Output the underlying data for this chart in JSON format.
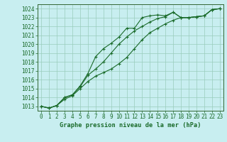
{
  "title": "Graphe pression niveau de la mer (hPa)",
  "bg_color": "#c8eef0",
  "grid_color": "#99ccbb",
  "line_color": "#1a6b2a",
  "spine_color": "#336633",
  "xlim": [
    -0.5,
    23.5
  ],
  "ylim": [
    1012.5,
    1024.5
  ],
  "xticks": [
    0,
    1,
    2,
    3,
    4,
    5,
    6,
    7,
    8,
    9,
    10,
    11,
    12,
    13,
    14,
    15,
    16,
    17,
    18,
    19,
    20,
    21,
    22,
    23
  ],
  "yticks": [
    1013,
    1014,
    1015,
    1016,
    1017,
    1018,
    1019,
    1020,
    1021,
    1022,
    1023,
    1024
  ],
  "line1_x": [
    0,
    1,
    2,
    3,
    4,
    5,
    6,
    7,
    8,
    9,
    10,
    11,
    12,
    13,
    14,
    15,
    16,
    17,
    18,
    19,
    20,
    21,
    22,
    23
  ],
  "line1_y": [
    1013.0,
    1012.8,
    1013.1,
    1014.0,
    1014.3,
    1015.3,
    1016.7,
    1018.6,
    1019.5,
    1020.1,
    1020.8,
    1021.8,
    1021.8,
    1023.0,
    1023.2,
    1023.3,
    1023.2,
    1023.6,
    1023.0,
    1023.0,
    1023.1,
    1023.2,
    1023.9,
    1024.0
  ],
  "line2_x": [
    0,
    1,
    2,
    3,
    4,
    5,
    6,
    7,
    8,
    9,
    10,
    11,
    12,
    13,
    14,
    15,
    16,
    17,
    18,
    19,
    20,
    21,
    22,
    23
  ],
  "line2_y": [
    1013.0,
    1012.8,
    1013.1,
    1013.8,
    1014.2,
    1015.0,
    1015.8,
    1016.4,
    1016.8,
    1017.2,
    1017.8,
    1018.5,
    1019.5,
    1020.5,
    1021.3,
    1021.8,
    1022.3,
    1022.7,
    1023.0,
    1023.0,
    1023.1,
    1023.2,
    1023.9,
    1024.0
  ],
  "line3_x": [
    0,
    1,
    2,
    3,
    4,
    5,
    6,
    7,
    8,
    9,
    10,
    11,
    12,
    13,
    14,
    15,
    16,
    17,
    18,
    19,
    20,
    21,
    22,
    23
  ],
  "line3_y": [
    1013.0,
    1012.8,
    1013.1,
    1014.0,
    1014.3,
    1015.2,
    1016.5,
    1017.2,
    1018.0,
    1019.0,
    1020.0,
    1020.8,
    1021.5,
    1022.0,
    1022.5,
    1022.9,
    1023.1,
    1023.6,
    1023.0,
    1023.0,
    1023.1,
    1023.2,
    1023.9,
    1024.0
  ],
  "ylabel_fontsize": 5.5,
  "xlabel_fontsize": 6.0,
  "title_fontsize": 6.2,
  "lw": 0.8,
  "marker_size": 2.5
}
